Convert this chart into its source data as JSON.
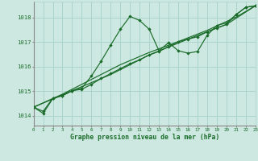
{
  "title": "Graphe pression niveau de la mer (hPa)",
  "bg_color": "#cce8e0",
  "grid_color": "#aad4cc",
  "line_color": "#1a6b2a",
  "x_min": 0,
  "x_max": 23,
  "y_min": 1013.6,
  "y_max": 1018.65,
  "y_ticks": [
    1014,
    1015,
    1016,
    1017,
    1018
  ],
  "x_ticks": [
    0,
    1,
    2,
    3,
    4,
    5,
    6,
    7,
    8,
    9,
    10,
    11,
    12,
    13,
    14,
    15,
    16,
    17,
    18,
    19,
    20,
    21,
    22,
    23
  ],
  "series1": [
    [
      0,
      1014.35
    ],
    [
      1,
      1014.1
    ],
    [
      2,
      1014.7
    ],
    [
      3,
      1014.82
    ],
    [
      4,
      1015.02
    ],
    [
      5,
      1015.12
    ],
    [
      6,
      1015.62
    ],
    [
      7,
      1016.22
    ],
    [
      8,
      1016.88
    ],
    [
      9,
      1017.52
    ],
    [
      10,
      1018.05
    ],
    [
      11,
      1017.88
    ],
    [
      12,
      1017.52
    ],
    [
      13,
      1016.65
    ],
    [
      14,
      1016.98
    ],
    [
      15,
      1016.65
    ],
    [
      16,
      1016.55
    ],
    [
      17,
      1016.62
    ],
    [
      18,
      1017.28
    ],
    [
      19,
      1017.68
    ],
    [
      20,
      1017.78
    ],
    [
      21,
      1018.12
    ],
    [
      22,
      1018.42
    ],
    [
      23,
      1018.48
    ]
  ],
  "series2": [
    [
      0,
      1014.35
    ],
    [
      1,
      1014.18
    ],
    [
      2,
      1014.72
    ],
    [
      3,
      1014.82
    ],
    [
      4,
      1015.02
    ],
    [
      5,
      1015.08
    ],
    [
      6,
      1015.28
    ],
    [
      7,
      1015.52
    ],
    [
      8,
      1015.72
    ],
    [
      9,
      1015.92
    ],
    [
      10,
      1016.12
    ],
    [
      11,
      1016.28
    ],
    [
      12,
      1016.48
    ],
    [
      13,
      1016.62
    ],
    [
      14,
      1016.82
    ],
    [
      15,
      1017.02
    ],
    [
      16,
      1017.12
    ],
    [
      17,
      1017.22
    ],
    [
      18,
      1017.42
    ],
    [
      19,
      1017.58
    ],
    [
      20,
      1017.72
    ],
    [
      21,
      1018.12
    ],
    [
      22,
      1018.42
    ],
    [
      23,
      1018.48
    ]
  ],
  "series3": [
    [
      0,
      1014.35
    ],
    [
      3,
      1014.88
    ],
    [
      6,
      1015.48
    ],
    [
      9,
      1016.08
    ],
    [
      12,
      1016.58
    ],
    [
      15,
      1017.02
    ],
    [
      18,
      1017.48
    ],
    [
      21,
      1018.02
    ],
    [
      23,
      1018.48
    ]
  ],
  "series4": [
    [
      0,
      1014.35
    ],
    [
      4,
      1015.02
    ],
    [
      8,
      1015.68
    ],
    [
      12,
      1016.48
    ],
    [
      16,
      1017.12
    ],
    [
      20,
      1017.72
    ],
    [
      23,
      1018.48
    ]
  ]
}
